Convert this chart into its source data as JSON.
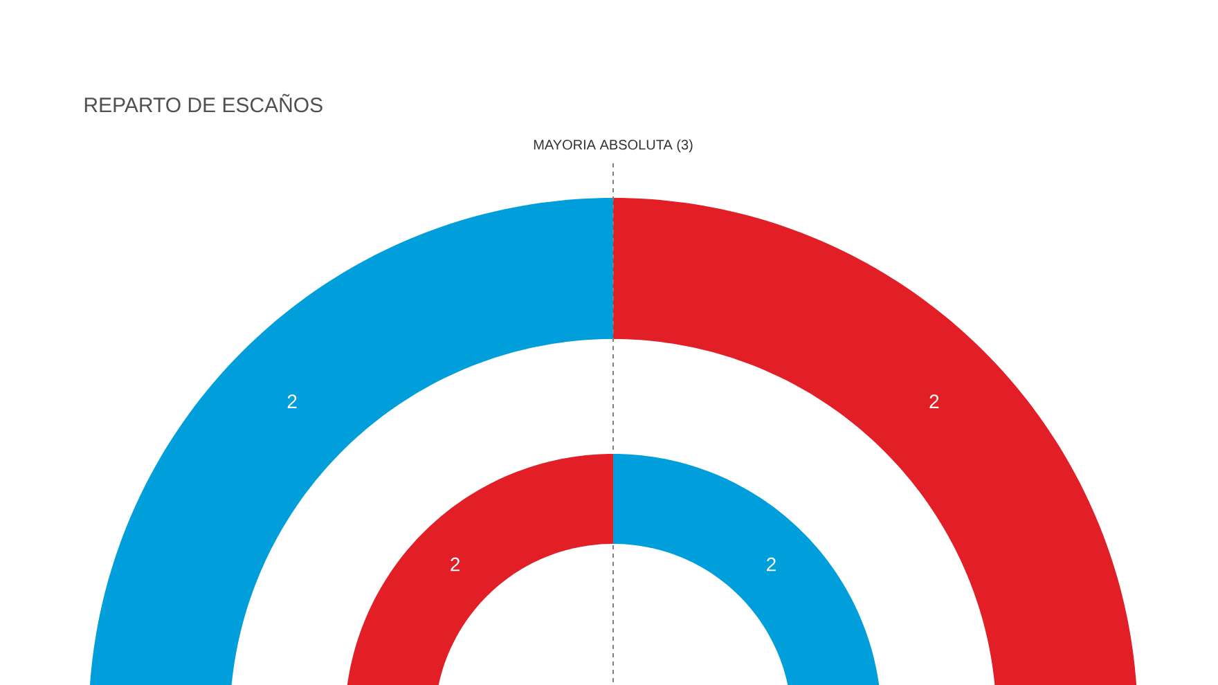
{
  "chart_data": [
    {
      "type": "donut",
      "title": "REPARTO DE ESCAÑOS",
      "annotations": [
        "MAYORIA ABSOLUTA (3)"
      ],
      "categories": [
        null,
        null
      ],
      "values": [
        2,
        2
      ],
      "colors": [
        "#009fdb",
        "#e21f26"
      ],
      "data_labels": true
    },
    {
      "type": "donut",
      "categories": [
        null,
        null
      ],
      "values": [
        2,
        2
      ],
      "colors": [
        "#e21f26",
        "#009fdb"
      ],
      "data_labels": true
    }
  ]
}
